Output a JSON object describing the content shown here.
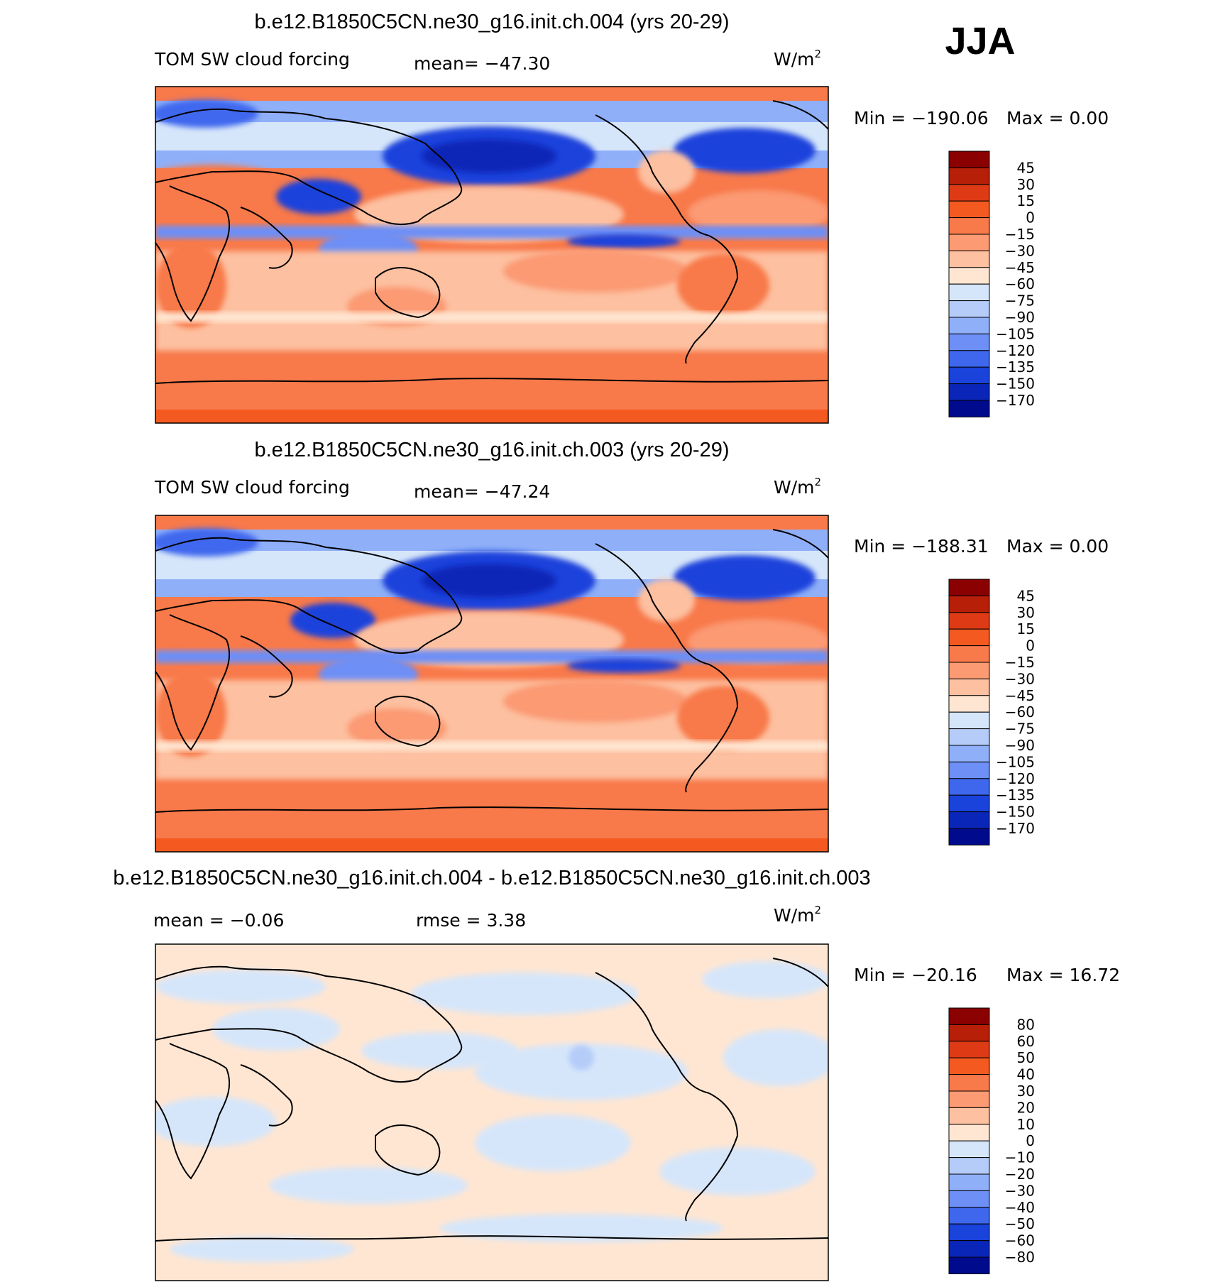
{
  "season": "JJA",
  "panels": [
    {
      "title": "b.e12.B1850C5CN.ne30_g16.init.ch.004 (yrs 20-29)",
      "field": "TOM SW cloud forcing",
      "stat1": "mean= −47.30",
      "stat2": "",
      "units": "W/m",
      "units_sup": "2",
      "minmax_left": "Min = −190.06",
      "minmax_right": "Max =   0.00",
      "scale": "abs"
    },
    {
      "title": "b.e12.B1850C5CN.ne30_g16.init.ch.003 (yrs 20-29)",
      "field": "TOM SW cloud forcing",
      "stat1": "mean= −47.24",
      "stat2": "",
      "units": "W/m",
      "units_sup": "2",
      "minmax_left": "Min = −188.31",
      "minmax_right": "Max =   0.00",
      "scale": "abs"
    },
    {
      "title": "b.e12.B1850C5CN.ne30_g16.init.ch.004 - b.e12.B1850C5CN.ne30_g16.init.ch.003",
      "field": "",
      "stat1": "mean =   −0.06",
      "stat2": "rmse =    3.38",
      "units": "W/m",
      "units_sup": "2",
      "minmax_left": "Min = −20.16",
      "minmax_right": "Max =  16.72",
      "scale": "diff"
    }
  ],
  "colorbars": {
    "abs": {
      "labels": [
        "45",
        "30",
        "15",
        "0",
        "−15",
        "−30",
        "−45",
        "−60",
        "−75",
        "−90",
        "−105",
        "−120",
        "−135",
        "−150",
        "−170"
      ],
      "colors": [
        "#8b0000",
        "#b81f08",
        "#df3a16",
        "#f4591f",
        "#f8794a",
        "#fb9a73",
        "#fdc0a0",
        "#ffe6d2",
        "#d6e6fa",
        "#b5ccf9",
        "#8faff8",
        "#6d8ff6",
        "#3f67ee",
        "#1a43dc",
        "#0a26b8",
        "#000a8c"
      ]
    },
    "diff": {
      "labels": [
        "80",
        "60",
        "50",
        "40",
        "30",
        "20",
        "10",
        "0",
        "−10",
        "−20",
        "−30",
        "−40",
        "−50",
        "−60",
        "−80"
      ],
      "colors": [
        "#8b0000",
        "#b81f08",
        "#df3a16",
        "#f4591f",
        "#f8794a",
        "#fb9a73",
        "#fdc0a0",
        "#ffe6d2",
        "#d6e6fa",
        "#b5ccf9",
        "#8faff8",
        "#6d8ff6",
        "#3f67ee",
        "#1a43dc",
        "#0a26b8",
        "#000a8c"
      ]
    }
  }
}
